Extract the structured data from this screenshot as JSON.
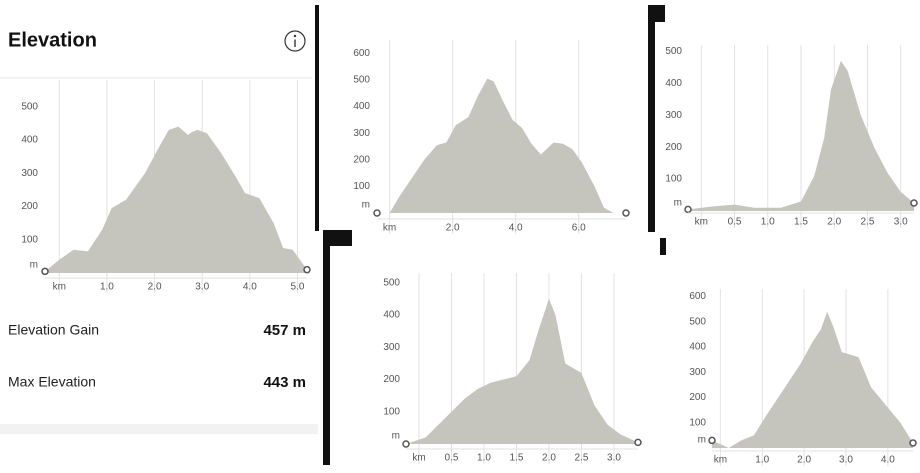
{
  "panel": {
    "title": "Elevation",
    "stats": [
      {
        "label": "Elevation Gain",
        "value": "457 m"
      },
      {
        "label": "Max Elevation",
        "value": "443 m"
      }
    ]
  },
  "chart_data": [
    {
      "type": "area",
      "color": "#c6c5bd",
      "grid": "x",
      "x": [
        -0.3,
        0.0,
        0.3,
        0.6,
        0.9,
        1.1,
        1.4,
        1.8,
        2.1,
        2.3,
        2.5,
        2.7,
        2.8,
        2.9,
        3.1,
        3.4,
        3.7,
        3.9,
        4.2,
        4.5,
        4.7,
        4.9,
        5.2
      ],
      "values": [
        5,
        40,
        70,
        65,
        130,
        195,
        220,
        300,
        380,
        430,
        440,
        415,
        425,
        430,
        420,
        360,
        290,
        240,
        225,
        150,
        75,
        70,
        10
      ],
      "xlim": [
        -0.3,
        5.2
      ],
      "ylim": [
        0,
        580
      ],
      "xticks": [
        {
          "value": 0,
          "label": "km"
        },
        {
          "value": 1,
          "label": "1.0"
        },
        {
          "value": 2,
          "label": "2.0"
        },
        {
          "value": 3,
          "label": "3.0"
        },
        {
          "value": 4,
          "label": "4.0"
        },
        {
          "value": 5,
          "label": "5.0"
        }
      ],
      "yticks": [
        {
          "value": 0,
          "label": "m"
        },
        100,
        200,
        300,
        400,
        500
      ]
    },
    {
      "type": "area",
      "color": "#c6c5bd",
      "grid": "x",
      "x": [
        -0.4,
        0.0,
        0.3,
        0.7,
        1.1,
        1.5,
        1.8,
        2.1,
        2.5,
        2.8,
        3.1,
        3.3,
        3.6,
        3.9,
        4.2,
        4.5,
        4.8,
        5.2,
        5.5,
        5.8,
        6.1,
        6.5,
        6.8,
        7.1,
        7.5
      ],
      "values": [
        0,
        0,
        60,
        130,
        200,
        255,
        265,
        330,
        360,
        440,
        505,
        495,
        420,
        350,
        320,
        260,
        220,
        265,
        260,
        240,
        190,
        100,
        20,
        0,
        0
      ],
      "xlim": [
        -0.4,
        7.5
      ],
      "ylim": [
        0,
        650
      ],
      "xticks": [
        {
          "value": 0,
          "label": "km"
        },
        {
          "value": 2,
          "label": "2.0"
        },
        {
          "value": 4,
          "label": "4.0"
        },
        {
          "value": 6,
          "label": "6.0"
        }
      ],
      "yticks": [
        {
          "value": 0,
          "label": "m"
        },
        100,
        200,
        300,
        400,
        500,
        600
      ]
    },
    {
      "type": "area",
      "color": "#c6c5bd",
      "grid": "x",
      "x": [
        -0.2,
        0.2,
        0.5,
        0.8,
        1.2,
        1.5,
        1.7,
        1.85,
        1.95,
        2.1,
        2.2,
        2.4,
        2.6,
        2.8,
        3.0,
        3.2
      ],
      "values": [
        5,
        15,
        20,
        10,
        10,
        30,
        110,
        230,
        380,
        470,
        440,
        300,
        200,
        120,
        60,
        25
      ],
      "xlim": [
        -0.2,
        3.2
      ],
      "ylim": [
        0,
        520
      ],
      "xticks": [
        {
          "value": 0,
          "label": "km"
        },
        0.5,
        {
          "value": 1,
          "label": "1.0"
        },
        1.5,
        {
          "value": 2,
          "label": "2.0"
        },
        2.5,
        {
          "value": 3,
          "label": "3.0"
        }
      ],
      "yticks": [
        {
          "value": 0,
          "label": "m"
        },
        100,
        200,
        300,
        400,
        500
      ]
    },
    {
      "type": "area",
      "color": "#c6c5bd",
      "grid": "x",
      "x": [
        -0.2,
        0.1,
        0.4,
        0.7,
        0.9,
        1.1,
        1.3,
        1.5,
        1.7,
        1.85,
        2.0,
        2.1,
        2.25,
        2.5,
        2.7,
        2.9,
        3.1,
        3.37
      ],
      "values": [
        0,
        20,
        80,
        140,
        170,
        190,
        200,
        210,
        260,
        360,
        450,
        400,
        250,
        220,
        120,
        60,
        30,
        5
      ],
      "xlim": [
        -0.2,
        3.37
      ],
      "ylim": [
        0,
        530
      ],
      "xticks": [
        {
          "value": 0,
          "label": "km"
        },
        0.5,
        {
          "value": 1,
          "label": "1.0"
        },
        1.5,
        {
          "value": 2,
          "label": "2.0"
        },
        2.5,
        {
          "value": 3,
          "label": "3.0"
        }
      ],
      "yticks": [
        {
          "value": 0,
          "label": "m"
        },
        100,
        200,
        300,
        400,
        500
      ]
    },
    {
      "type": "area",
      "color": "#c6c5bd",
      "grid": "x",
      "x": [
        -0.2,
        0.2,
        0.5,
        0.8,
        1.1,
        1.5,
        1.9,
        2.2,
        2.4,
        2.55,
        2.7,
        2.9,
        3.1,
        3.3,
        3.6,
        4.0,
        4.3,
        4.6
      ],
      "values": [
        30,
        0,
        30,
        50,
        130,
        230,
        330,
        420,
        470,
        540,
        480,
        380,
        370,
        360,
        240,
        160,
        100,
        20
      ],
      "xlim": [
        -0.2,
        4.6
      ],
      "ylim": [
        0,
        630
      ],
      "xticks": [
        {
          "value": 0,
          "label": "km"
        },
        {
          "value": 1,
          "label": "1.0"
        },
        {
          "value": 2,
          "label": "2.0"
        },
        {
          "value": 3,
          "label": "3.0"
        },
        {
          "value": 4,
          "label": "4.0"
        }
      ],
      "yticks": [
        {
          "value": 0,
          "label": "m"
        },
        100,
        200,
        300,
        400,
        500,
        600
      ]
    }
  ]
}
